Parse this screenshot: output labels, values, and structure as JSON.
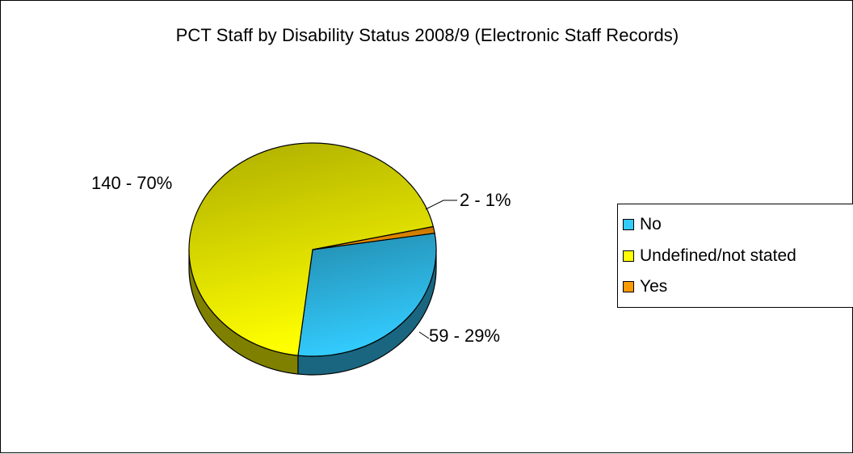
{
  "chart_data": {
    "type": "pie",
    "title": "PCT Staff by Disability Status 2008/9 (Electronic Staff Records)",
    "categories": [
      "No",
      "Undefined/not stated",
      "Yes"
    ],
    "values": [
      59,
      140,
      2
    ],
    "percentages": [
      29,
      70,
      1
    ],
    "data_labels": [
      "59 - 29%",
      "140 - 70%",
      "2 - 1%"
    ],
    "colors": [
      "#33ccff",
      "#ffff00",
      "#ff9900"
    ],
    "legend_placement": "right",
    "three_d": true
  },
  "legend": {
    "items": [
      {
        "label": "No",
        "color": "#33ccff"
      },
      {
        "label": "Undefined/not stated",
        "color": "#ffff00"
      },
      {
        "label": "Yes",
        "color": "#ff9900"
      }
    ]
  }
}
